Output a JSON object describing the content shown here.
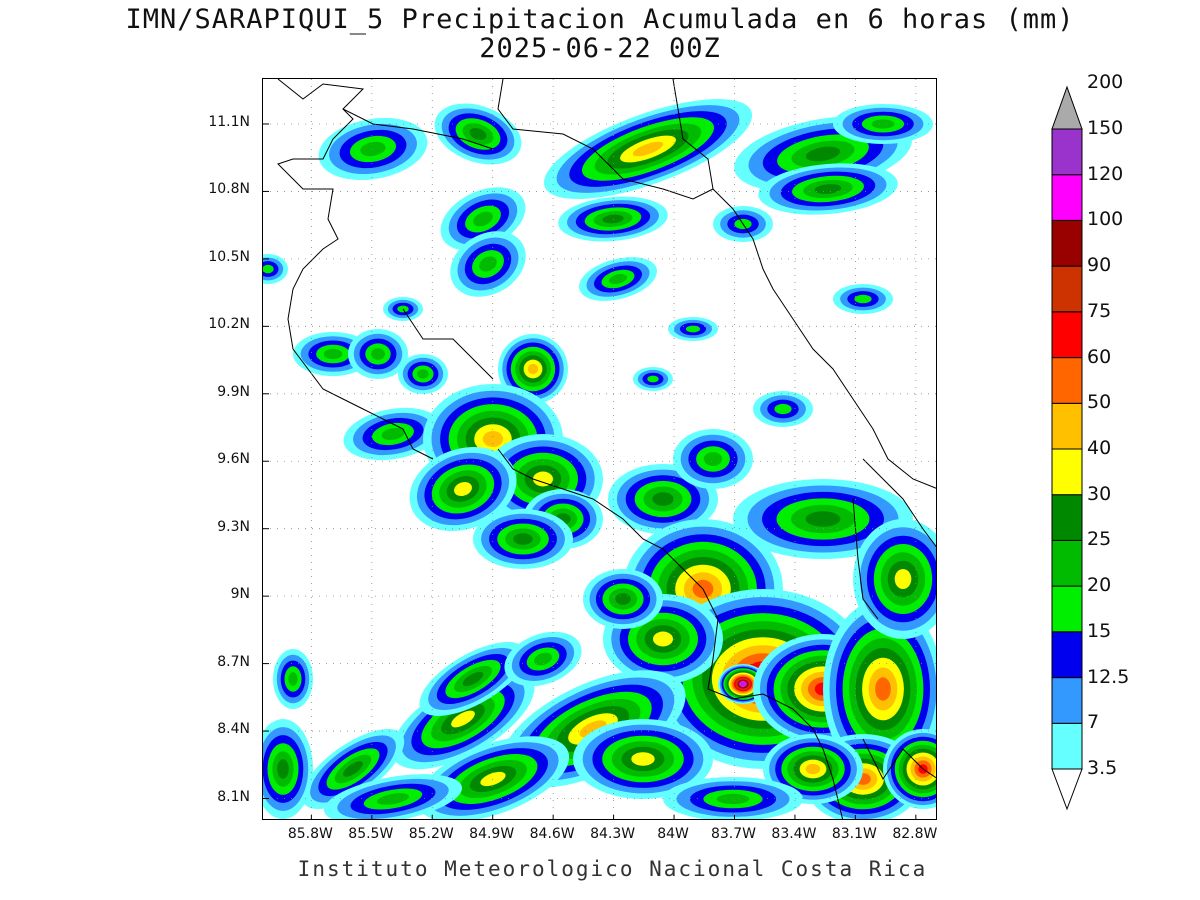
{
  "title": {
    "line1": "IMN/SARAPIQUI_5 Precipitacion Acumulada en 6 horas (mm)",
    "line2": "2025-06-22 00Z"
  },
  "footer": "Instituto Meteorologico Nacional Costa Rica",
  "map": {
    "lon_range": [
      -86.04,
      -82.69
    ],
    "lat_range": [
      8.0,
      11.3
    ],
    "lat_ticks": [
      "8.1N",
      "8.4N",
      "8.7N",
      "9N",
      "9.3N",
      "9.6N",
      "9.9N",
      "10.2N",
      "10.5N",
      "10.8N",
      "11.1N"
    ],
    "lat_values": [
      8.1,
      8.4,
      8.7,
      9.0,
      9.3,
      9.6,
      9.9,
      10.2,
      10.5,
      10.8,
      11.1
    ],
    "lon_ticks": [
      "85.8W",
      "85.5W",
      "85.2W",
      "84.9W",
      "84.6W",
      "84.3W",
      "84W",
      "83.7W",
      "83.4W",
      "83.1W",
      "82.8W"
    ],
    "lon_values": [
      -85.8,
      -85.5,
      -85.2,
      -84.9,
      -84.6,
      -84.3,
      -84.0,
      -83.7,
      -83.4,
      -83.1,
      -82.8
    ],
    "grid": true
  },
  "colorbar": {
    "levels": [
      "3.5",
      "7",
      "12.5",
      "15",
      "20",
      "25",
      "30",
      "40",
      "50",
      "60",
      "75",
      "90",
      "100",
      "120",
      "150",
      "200"
    ],
    "colors": [
      "#66ffff",
      "#3399ff",
      "#0000ee",
      "#00ee00",
      "#00bb00",
      "#008800",
      "#ffff00",
      "#ffc000",
      "#ff6600",
      "#ff0000",
      "#cc3300",
      "#990000",
      "#ff00ff",
      "#9933cc",
      "#f8f8f8",
      "#aaaaaa"
    ]
  }
}
